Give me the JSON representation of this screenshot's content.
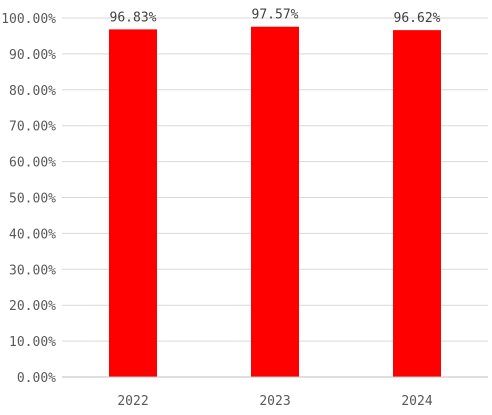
{
  "chart_data": {
    "type": "bar",
    "categories": [
      "2022",
      "2023",
      "2024"
    ],
    "values": [
      96.83,
      97.57,
      96.62
    ],
    "data_labels": [
      "96.83%",
      "97.57%",
      "96.62%"
    ],
    "y_ticks": [
      "0.00%",
      "10.00%",
      "20.00%",
      "30.00%",
      "40.00%",
      "50.00%",
      "60.00%",
      "70.00%",
      "80.00%",
      "90.00%",
      "100.00%"
    ],
    "ylim": [
      0,
      100
    ],
    "grid": true,
    "legend": "none",
    "bar_color": "#ff0000",
    "grid_color": "#d9d9d9",
    "axis_color": "#bfbfbf"
  }
}
